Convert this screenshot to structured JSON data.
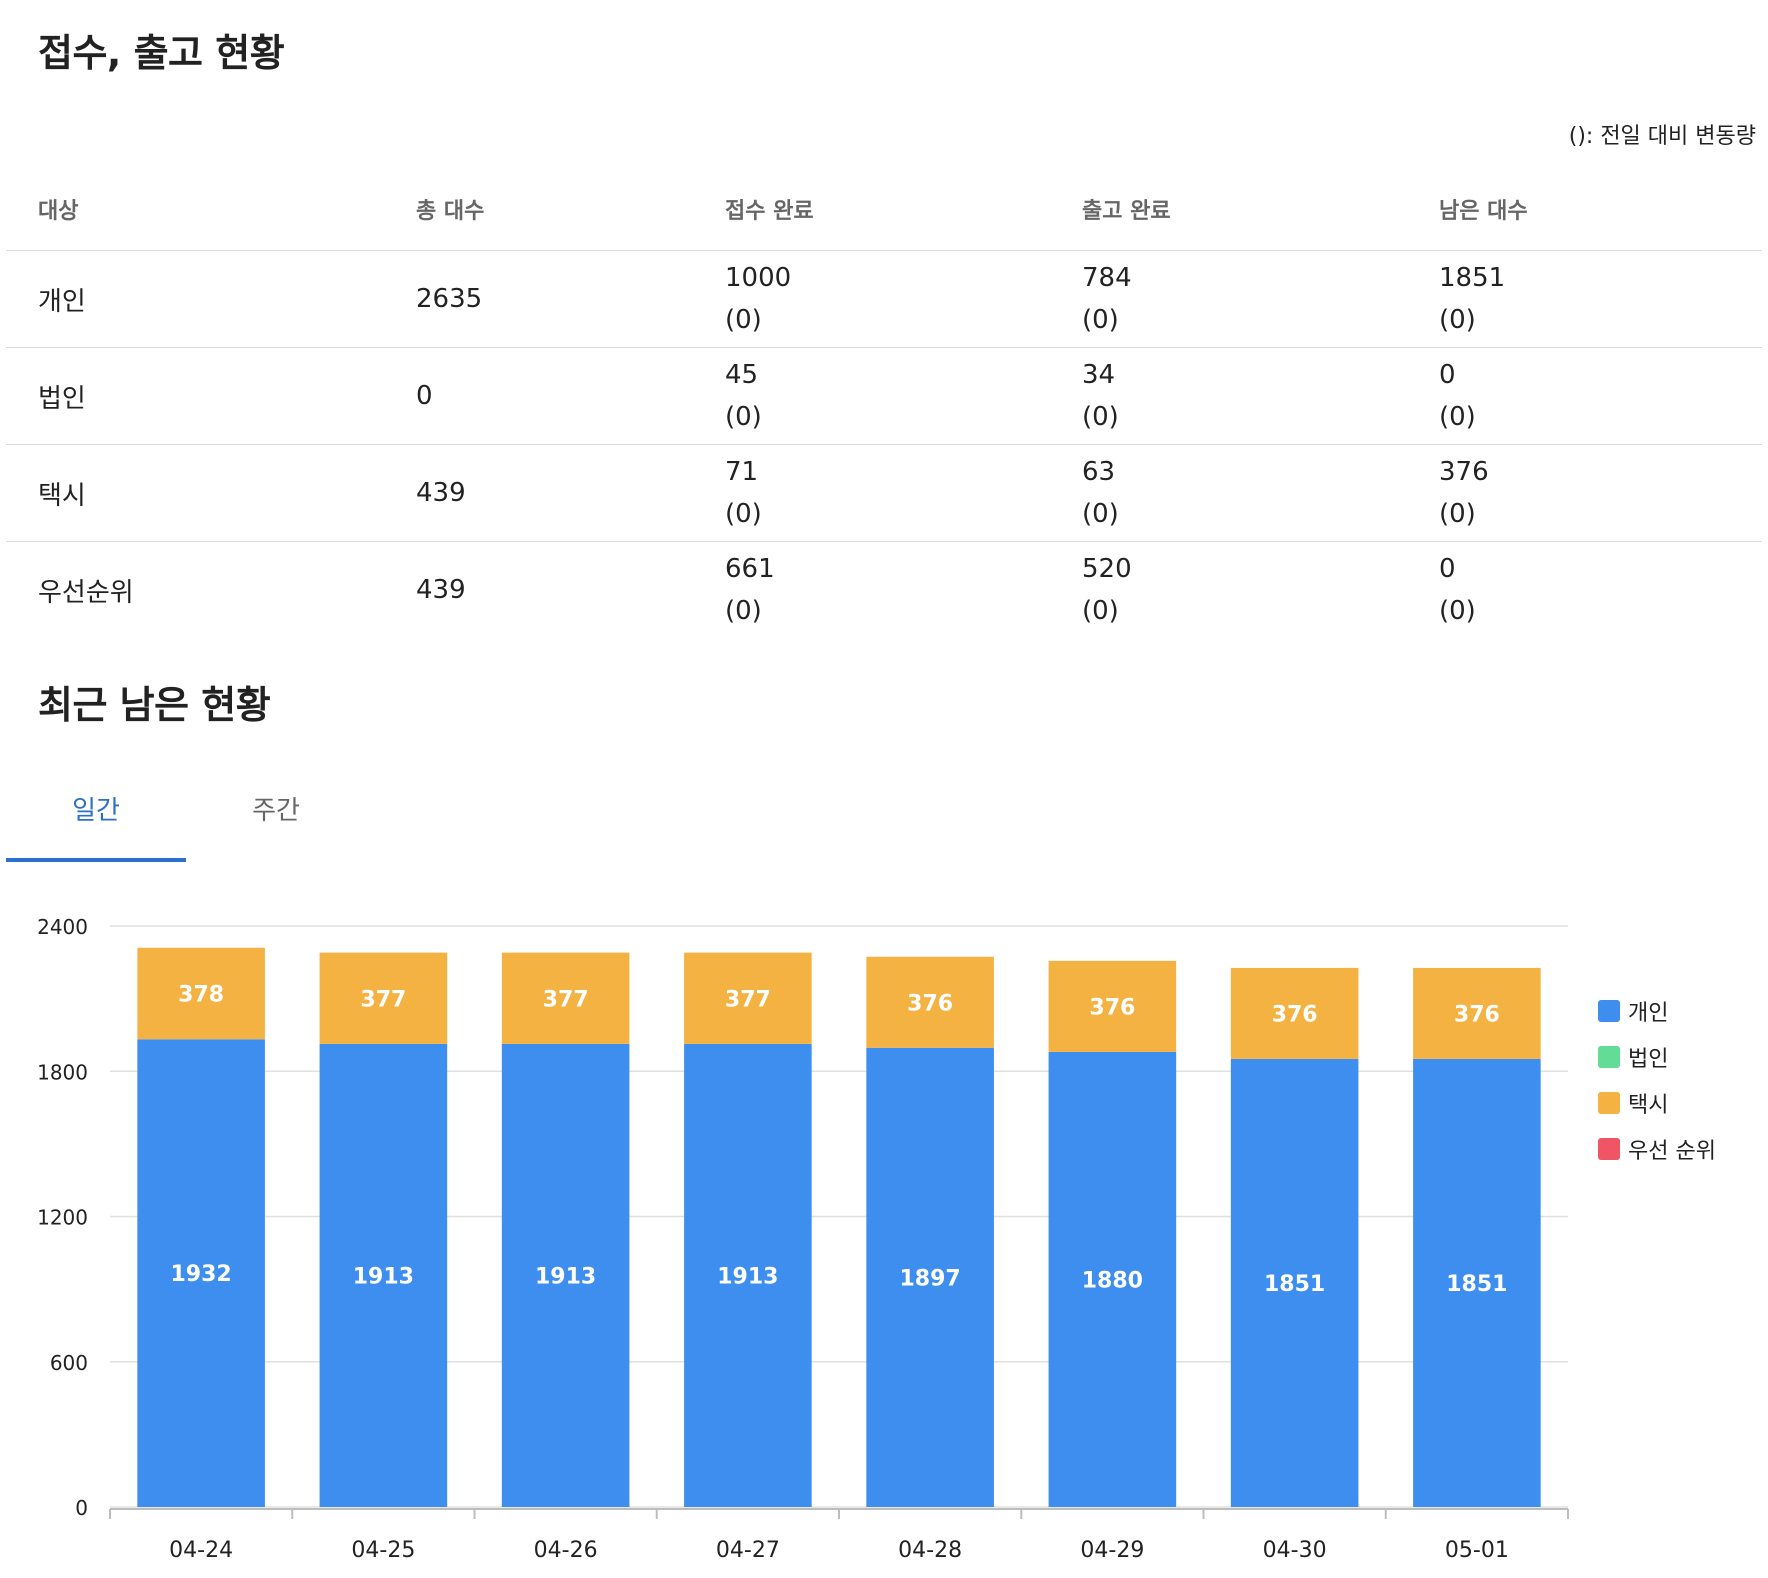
{
  "section1": {
    "title": "접수, 출고 현황",
    "note": "(): 전일 대비 변동량",
    "headers": [
      "대상",
      "총 대수",
      "접수 완료",
      "출고 완료",
      "남은 대수"
    ],
    "rows": [
      {
        "target": "개인",
        "total": "2635",
        "received": "1000",
        "received_change": "(0)",
        "released": "784",
        "released_change": "(0)",
        "remaining": "1851",
        "remaining_change": "(0)"
      },
      {
        "target": "법인",
        "total": "0",
        "received": "45",
        "received_change": "(0)",
        "released": "34",
        "released_change": "(0)",
        "remaining": "0",
        "remaining_change": "(0)"
      },
      {
        "target": "택시",
        "total": "439",
        "received": "71",
        "received_change": "(0)",
        "released": "63",
        "released_change": "(0)",
        "remaining": "376",
        "remaining_change": "(0)"
      },
      {
        "target": "우선순위",
        "total": "439",
        "received": "661",
        "received_change": "(0)",
        "released": "520",
        "released_change": "(0)",
        "remaining": "0",
        "remaining_change": "(0)"
      }
    ]
  },
  "section2": {
    "title": "최근 남은 현황",
    "tabs": [
      {
        "label": "일간",
        "active": true
      },
      {
        "label": "주간",
        "active": false
      }
    ]
  },
  "chart_data": {
    "type": "bar",
    "stacked": true,
    "categories": [
      "04-24",
      "04-25",
      "04-26",
      "04-27",
      "04-28",
      "04-29",
      "04-30",
      "05-01"
    ],
    "series": [
      {
        "name": "개인",
        "color": "#3d8eef",
        "values": [
          1932,
          1913,
          1913,
          1913,
          1897,
          1880,
          1851,
          1851
        ]
      },
      {
        "name": "법인",
        "color": "#62dc96",
        "values": [
          0,
          0,
          0,
          0,
          0,
          0,
          0,
          0
        ]
      },
      {
        "name": "택시",
        "color": "#f4b243",
        "values": [
          378,
          377,
          377,
          377,
          376,
          376,
          376,
          376
        ]
      },
      {
        "name": "우선 순위",
        "color": "#f05565",
        "values": [
          0,
          0,
          0,
          0,
          0,
          0,
          0,
          0
        ]
      }
    ],
    "yticks": [
      "0",
      "600",
      "1200",
      "1800",
      "2400"
    ],
    "ylim": [
      0,
      2400
    ],
    "grid": true,
    "legend_position": "right"
  }
}
